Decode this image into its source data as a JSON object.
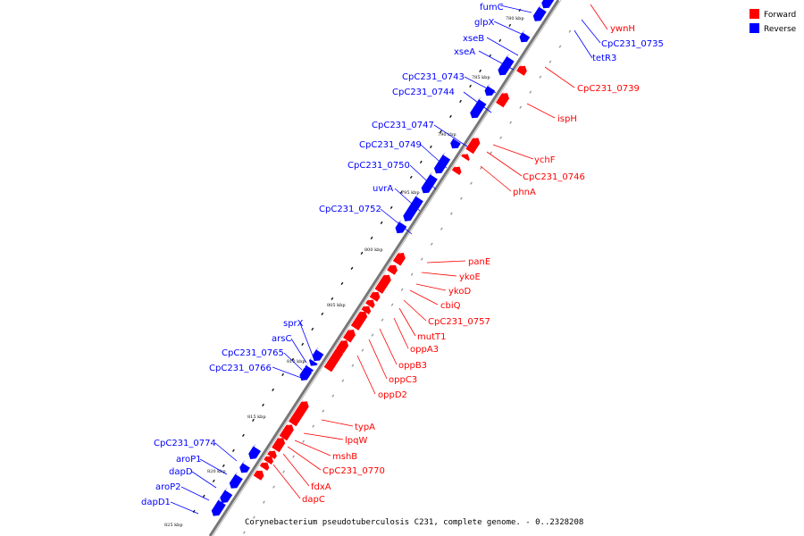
{
  "colors": {
    "forward": "#ff0000",
    "reverse": "#0000ff",
    "backbone": "#777777"
  },
  "legend": {
    "forward": "Forward",
    "reverse": "Reverse"
  },
  "caption": "Corynebacterium pseudotuberculosis C231, complete genome. - 0..2328208",
  "ticks": [
    "780 kbp",
    "785 kbp",
    "790 kbp",
    "795 kbp",
    "800 kbp",
    "805 kbp",
    "810 kbp",
    "815 kbp",
    "820 kbp",
    "825 kbp"
  ],
  "genes_reverse": [
    "fumC",
    "glpX",
    "xseB",
    "xseA",
    "CpC231_0743",
    "CpC231_0744",
    "CpC231_0747",
    "CpC231_0749",
    "CpC231_0750",
    "uvrA",
    "CpC231_0752",
    "sprX",
    "arsC",
    "CpC231_0765",
    "CpC231_0766",
    "CpC231_0774",
    "aroP1",
    "dapD",
    "aroP2",
    "dapD1"
  ],
  "genes_forward": [
    "ywnH",
    "CpC231_0735",
    "tetR3",
    "CpC231_0739",
    "ispH",
    "ychF",
    "CpC231_0746",
    "phnA",
    "panE",
    "ykoE",
    "ykoD",
    "cbiQ",
    "CpC231_0757",
    "mutT1",
    "oppA3",
    "oppB3",
    "oppC3",
    "oppD2",
    "typA",
    "lpqW",
    "mshB",
    "CpC231_0770",
    "fdxA",
    "dapC"
  ]
}
